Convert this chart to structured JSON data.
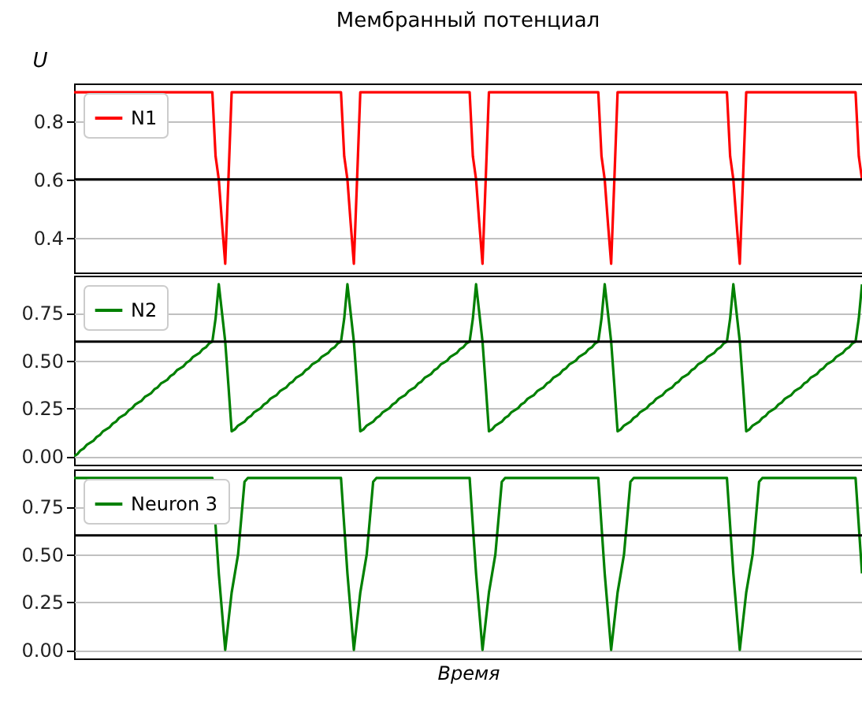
{
  "chart_data": [
    {
      "type": "line",
      "title": "Мембранный потенциал",
      "ylabel": "U",
      "categories": [
        null,
        null,
        null,
        null,
        null,
        null,
        null,
        null,
        null,
        null,
        null,
        null,
        null,
        null,
        null,
        null,
        null,
        null,
        null,
        null,
        null,
        null,
        null,
        null,
        null,
        null,
        null,
        null,
        null,
        null,
        null,
        null,
        null,
        null,
        null,
        null,
        null,
        null,
        null,
        null,
        null,
        null,
        null,
        null,
        null,
        null,
        null,
        null,
        null,
        null,
        null,
        null,
        null,
        null,
        null,
        null,
        null,
        null,
        null,
        null,
        null,
        null,
        null,
        null,
        null,
        null,
        null,
        null,
        null,
        null,
        null,
        null,
        null,
        null,
        null,
        null,
        null,
        null,
        null,
        null,
        null,
        null,
        null,
        null,
        null,
        null,
        null,
        null,
        null,
        null,
        null,
        null,
        null,
        null,
        null,
        null,
        null,
        null,
        null,
        null,
        null,
        null,
        null,
        null,
        null,
        null,
        null,
        null,
        null,
        null,
        null,
        null,
        null,
        null,
        null,
        null,
        null,
        null,
        null,
        null,
        null,
        null,
        null,
        null,
        null,
        null,
        null,
        null,
        null,
        null,
        null,
        null,
        null,
        null,
        null,
        null,
        null,
        null,
        null,
        null,
        null,
        null,
        null,
        null,
        null,
        null,
        null,
        null,
        null,
        null,
        null,
        null,
        null,
        null,
        null,
        null,
        null,
        null,
        null,
        null,
        null,
        null,
        null,
        null,
        null,
        null,
        null,
        null,
        null,
        null,
        null,
        null,
        null,
        null,
        null,
        null,
        null,
        null,
        null,
        null,
        null,
        null,
        null,
        null,
        null,
        null,
        null,
        null,
        null,
        null,
        null,
        null,
        null,
        null,
        null,
        null,
        null,
        null,
        null,
        null,
        null,
        null,
        null,
        null,
        null,
        null,
        null,
        null,
        null,
        null,
        null,
        null,
        null,
        null,
        null,
        null,
        null,
        null,
        null,
        null,
        null,
        null,
        null,
        null,
        null,
        null,
        null,
        null,
        null,
        null,
        null,
        null,
        null,
        null,
        null,
        null,
        null,
        null,
        null,
        null,
        null,
        null,
        null,
        null,
        null,
        null
      ],
      "series": [
        {
          "name": "N1",
          "color": "#ff0000",
          "values": [
            0.9,
            0.9,
            0.9,
            0.9,
            0.9,
            0.9,
            0.9,
            0.9,
            0.9,
            0.9,
            0.9,
            0.9,
            0.9,
            0.9,
            0.9,
            0.9,
            0.9,
            0.9,
            0.9,
            0.9,
            0.9,
            0.9,
            0.9,
            0.9,
            0.9,
            0.9,
            0.9,
            0.9,
            0.9,
            0.9,
            0.9,
            0.9,
            0.9,
            0.9,
            0.9,
            0.9,
            0.9,
            0.9,
            0.9,
            0.9,
            0.9,
            0.9,
            0.9,
            0.9,
            0.68,
            0.6,
            0.45,
            0.31,
            0.6,
            0.9,
            0.9,
            0.9,
            0.9,
            0.9,
            0.9,
            0.9,
            0.9,
            0.9,
            0.9,
            0.9,
            0.9,
            0.9,
            0.9,
            0.9,
            0.9,
            0.9,
            0.9,
            0.9,
            0.9,
            0.9,
            0.9,
            0.9,
            0.9,
            0.9,
            0.9,
            0.9,
            0.9,
            0.9,
            0.9,
            0.9,
            0.9,
            0.9,
            0.9,
            0.9,
            0.68,
            0.6,
            0.45,
            0.31,
            0.6,
            0.9,
            0.9,
            0.9,
            0.9,
            0.9,
            0.9,
            0.9,
            0.9,
            0.9,
            0.9,
            0.9,
            0.9,
            0.9,
            0.9,
            0.9,
            0.9,
            0.9,
            0.9,
            0.9,
            0.9,
            0.9,
            0.9,
            0.9,
            0.9,
            0.9,
            0.9,
            0.9,
            0.9,
            0.9,
            0.9,
            0.9,
            0.9,
            0.9,
            0.9,
            0.9,
            0.68,
            0.6,
            0.45,
            0.31,
            0.6,
            0.9,
            0.9,
            0.9,
            0.9,
            0.9,
            0.9,
            0.9,
            0.9,
            0.9,
            0.9,
            0.9,
            0.9,
            0.9,
            0.9,
            0.9,
            0.9,
            0.9,
            0.9,
            0.9,
            0.9,
            0.9,
            0.9,
            0.9,
            0.9,
            0.9,
            0.9,
            0.9,
            0.9,
            0.9,
            0.9,
            0.9,
            0.9,
            0.9,
            0.9,
            0.9,
            0.68,
            0.6,
            0.45,
            0.31,
            0.6,
            0.9,
            0.9,
            0.9,
            0.9,
            0.9,
            0.9,
            0.9,
            0.9,
            0.9,
            0.9,
            0.9,
            0.9,
            0.9,
            0.9,
            0.9,
            0.9,
            0.9,
            0.9,
            0.9,
            0.9,
            0.9,
            0.9,
            0.9,
            0.9,
            0.9,
            0.9,
            0.9,
            0.9,
            0.9,
            0.9,
            0.9,
            0.9,
            0.9,
            0.9,
            0.9,
            0.68,
            0.6,
            0.45,
            0.31,
            0.6,
            0.9,
            0.9,
            0.9,
            0.9,
            0.9,
            0.9,
            0.9,
            0.9,
            0.9,
            0.9,
            0.9,
            0.9,
            0.9,
            0.9,
            0.9,
            0.9,
            0.9,
            0.9,
            0.9,
            0.9,
            0.9,
            0.9,
            0.9,
            0.9,
            0.9,
            0.9,
            0.9,
            0.9,
            0.9,
            0.9,
            0.9,
            0.9,
            0.9,
            0.9,
            0.9,
            0.68,
            0.6
          ]
        }
      ],
      "ylim": [
        0.28,
        0.93
      ],
      "yticks": [
        0.4,
        0.6,
        0.8
      ],
      "ref_lines": [
        {
          "axis": "y",
          "value": 0.6,
          "color": "#000000"
        }
      ],
      "grid": "y",
      "legend": "top left",
      "tick_labels": "y"
    },
    {
      "type": "line",
      "categories": [
        null,
        null,
        null,
        null,
        null,
        null,
        null,
        null,
        null,
        null,
        null,
        null,
        null,
        null,
        null,
        null,
        null,
        null,
        null,
        null,
        null,
        null,
        null,
        null,
        null,
        null,
        null,
        null,
        null,
        null,
        null,
        null,
        null,
        null,
        null,
        null,
        null,
        null,
        null,
        null,
        null,
        null,
        null,
        null,
        null,
        null,
        null,
        null,
        null,
        null,
        null,
        null,
        null,
        null,
        null,
        null,
        null,
        null,
        null,
        null,
        null,
        null,
        null,
        null,
        null,
        null,
        null,
        null,
        null,
        null,
        null,
        null,
        null,
        null,
        null,
        null,
        null,
        null,
        null,
        null,
        null,
        null,
        null,
        null,
        null,
        null,
        null,
        null,
        null,
        null,
        null,
        null,
        null,
        null,
        null,
        null,
        null,
        null,
        null,
        null,
        null,
        null,
        null,
        null,
        null,
        null,
        null,
        null,
        null,
        null,
        null,
        null,
        null,
        null,
        null,
        null,
        null,
        null,
        null,
        null,
        null,
        null,
        null,
        null,
        null,
        null,
        null,
        null,
        null,
        null,
        null,
        null,
        null,
        null,
        null,
        null,
        null,
        null,
        null,
        null,
        null,
        null,
        null,
        null,
        null,
        null,
        null,
        null,
        null,
        null,
        null,
        null,
        null,
        null,
        null,
        null,
        null,
        null,
        null,
        null,
        null,
        null,
        null,
        null,
        null,
        null,
        null,
        null,
        null,
        null,
        null,
        null,
        null,
        null,
        null,
        null,
        null,
        null,
        null,
        null,
        null,
        null,
        null,
        null,
        null,
        null,
        null,
        null,
        null,
        null,
        null,
        null,
        null,
        null,
        null,
        null,
        null,
        null,
        null,
        null,
        null,
        null,
        null,
        null,
        null,
        null,
        null,
        null,
        null,
        null,
        null,
        null,
        null,
        null,
        null,
        null,
        null,
        null,
        null,
        null,
        null,
        null,
        null,
        null,
        null,
        null,
        null,
        null,
        null,
        null,
        null,
        null,
        null,
        null,
        null,
        null,
        null,
        null,
        null,
        null,
        null,
        null,
        null,
        null,
        null,
        null
      ],
      "series": [
        {
          "name": "N2",
          "color": "#008000",
          "values": [
            0,
            0.01,
            0.03,
            0.04,
            0.06,
            0.07,
            0.08,
            0.1,
            0.11,
            0.13,
            0.14,
            0.15,
            0.17,
            0.18,
            0.2,
            0.21,
            0.22,
            0.24,
            0.25,
            0.27,
            0.28,
            0.29,
            0.31,
            0.32,
            0.33,
            0.35,
            0.36,
            0.38,
            0.39,
            0.4,
            0.42,
            0.43,
            0.45,
            0.46,
            0.47,
            0.49,
            0.5,
            0.52,
            0.53,
            0.54,
            0.56,
            0.57,
            0.59,
            0.6,
            0.72,
            0.9,
            0.75,
            0.6,
            0.37,
            0.13,
            0.14,
            0.16,
            0.17,
            0.18,
            0.2,
            0.21,
            0.23,
            0.24,
            0.25,
            0.27,
            0.28,
            0.3,
            0.31,
            0.32,
            0.34,
            0.35,
            0.36,
            0.38,
            0.39,
            0.41,
            0.42,
            0.43,
            0.45,
            0.46,
            0.48,
            0.49,
            0.5,
            0.52,
            0.53,
            0.54,
            0.56,
            0.57,
            0.59,
            0.6,
            0.72,
            0.9,
            0.75,
            0.6,
            0.37,
            0.13,
            0.14,
            0.16,
            0.17,
            0.18,
            0.2,
            0.21,
            0.23,
            0.24,
            0.25,
            0.27,
            0.28,
            0.3,
            0.31,
            0.32,
            0.34,
            0.35,
            0.36,
            0.38,
            0.39,
            0.41,
            0.42,
            0.43,
            0.45,
            0.46,
            0.48,
            0.49,
            0.5,
            0.52,
            0.53,
            0.54,
            0.56,
            0.57,
            0.59,
            0.6,
            0.72,
            0.9,
            0.75,
            0.6,
            0.37,
            0.13,
            0.14,
            0.16,
            0.17,
            0.18,
            0.2,
            0.21,
            0.23,
            0.24,
            0.25,
            0.27,
            0.28,
            0.3,
            0.31,
            0.32,
            0.34,
            0.35,
            0.36,
            0.38,
            0.39,
            0.41,
            0.42,
            0.43,
            0.45,
            0.46,
            0.48,
            0.49,
            0.5,
            0.52,
            0.53,
            0.54,
            0.56,
            0.57,
            0.59,
            0.6,
            0.72,
            0.9,
            0.75,
            0.6,
            0.37,
            0.13,
            0.14,
            0.16,
            0.17,
            0.18,
            0.2,
            0.21,
            0.23,
            0.24,
            0.25,
            0.27,
            0.28,
            0.3,
            0.31,
            0.32,
            0.34,
            0.35,
            0.36,
            0.38,
            0.39,
            0.41,
            0.42,
            0.43,
            0.45,
            0.46,
            0.48,
            0.49,
            0.5,
            0.52,
            0.53,
            0.54,
            0.56,
            0.57,
            0.59,
            0.6,
            0.72,
            0.9,
            0.75,
            0.6,
            0.37,
            0.13,
            0.14,
            0.16,
            0.17,
            0.18,
            0.2,
            0.21,
            0.23,
            0.24,
            0.25,
            0.27,
            0.28,
            0.3,
            0.31,
            0.32,
            0.34,
            0.35,
            0.36,
            0.38,
            0.39,
            0.41,
            0.42,
            0.43,
            0.45,
            0.46,
            0.48,
            0.49,
            0.5,
            0.52,
            0.53,
            0.54,
            0.56,
            0.57,
            0.59,
            0.6,
            0.72,
            0.9
          ]
        }
      ],
      "ylim": [
        -0.045,
        0.945
      ],
      "yticks": [
        {
          "value": 0,
          "label": "0.00"
        },
        {
          "value": 0.25,
          "label": "0.25"
        },
        {
          "value": 0.5,
          "label": "0.50"
        },
        {
          "value": 0.75,
          "label": "0.75"
        }
      ],
      "ref_lines": [
        {
          "axis": "y",
          "value": 0.6,
          "color": "#000000"
        }
      ],
      "grid": "y",
      "legend": "top left",
      "tick_labels": "y"
    },
    {
      "type": "line",
      "xlabel": "Время",
      "categories": [
        null,
        null,
        null,
        null,
        null,
        null,
        null,
        null,
        null,
        null,
        null,
        null,
        null,
        null,
        null,
        null,
        null,
        null,
        null,
        null,
        null,
        null,
        null,
        null,
        null,
        null,
        null,
        null,
        null,
        null,
        null,
        null,
        null,
        null,
        null,
        null,
        null,
        null,
        null,
        null,
        null,
        null,
        null,
        null,
        null,
        null,
        null,
        null,
        null,
        null,
        null,
        null,
        null,
        null,
        null,
        null,
        null,
        null,
        null,
        null,
        null,
        null,
        null,
        null,
        null,
        null,
        null,
        null,
        null,
        null,
        null,
        null,
        null,
        null,
        null,
        null,
        null,
        null,
        null,
        null,
        null,
        null,
        null,
        null,
        null,
        null,
        null,
        null,
        null,
        null,
        null,
        null,
        null,
        null,
        null,
        null,
        null,
        null,
        null,
        null,
        null,
        null,
        null,
        null,
        null,
        null,
        null,
        null,
        null,
        null,
        null,
        null,
        null,
        null,
        null,
        null,
        null,
        null,
        null,
        null,
        null,
        null,
        null,
        null,
        null,
        null,
        null,
        null,
        null,
        null,
        null,
        null,
        null,
        null,
        null,
        null,
        null,
        null,
        null,
        null,
        null,
        null,
        null,
        null,
        null,
        null,
        null,
        null,
        null,
        null,
        null,
        null,
        null,
        null,
        null,
        null,
        null,
        null,
        null,
        null,
        null,
        null,
        null,
        null,
        null,
        null,
        null,
        null,
        null,
        null,
        null,
        null,
        null,
        null,
        null,
        null,
        null,
        null,
        null,
        null,
        null,
        null,
        null,
        null,
        null,
        null,
        null,
        null,
        null,
        null,
        null,
        null,
        null,
        null,
        null,
        null,
        null,
        null,
        null,
        null,
        null,
        null,
        null,
        null,
        null,
        null,
        null,
        null,
        null,
        null,
        null,
        null,
        null,
        null,
        null,
        null,
        null,
        null,
        null,
        null,
        null,
        null,
        null,
        null,
        null,
        null,
        null,
        null,
        null,
        null,
        null,
        null,
        null,
        null,
        null,
        null,
        null,
        null,
        null,
        null,
        null,
        null,
        null,
        null,
        null,
        null
      ],
      "series": [
        {
          "name": "Neuron 3",
          "color": "#008000",
          "values": [
            0.9,
            0.9,
            0.9,
            0.9,
            0.9,
            0.9,
            0.9,
            0.9,
            0.9,
            0.9,
            0.9,
            0.9,
            0.9,
            0.9,
            0.9,
            0.9,
            0.9,
            0.9,
            0.9,
            0.9,
            0.9,
            0.9,
            0.9,
            0.9,
            0.9,
            0.9,
            0.9,
            0.9,
            0.9,
            0.9,
            0.9,
            0.9,
            0.9,
            0.9,
            0.9,
            0.9,
            0.9,
            0.9,
            0.9,
            0.9,
            0.9,
            0.9,
            0.9,
            0.9,
            0.65,
            0.4,
            0.2,
            0,
            0.15,
            0.3,
            0.4,
            0.5,
            0.69,
            0.88,
            0.9,
            0.9,
            0.9,
            0.9,
            0.9,
            0.9,
            0.9,
            0.9,
            0.9,
            0.9,
            0.9,
            0.9,
            0.9,
            0.9,
            0.9,
            0.9,
            0.9,
            0.9,
            0.9,
            0.9,
            0.9,
            0.9,
            0.9,
            0.9,
            0.9,
            0.9,
            0.9,
            0.9,
            0.9,
            0.9,
            0.65,
            0.4,
            0.2,
            0,
            0.15,
            0.3,
            0.4,
            0.5,
            0.69,
            0.88,
            0.9,
            0.9,
            0.9,
            0.9,
            0.9,
            0.9,
            0.9,
            0.9,
            0.9,
            0.9,
            0.9,
            0.9,
            0.9,
            0.9,
            0.9,
            0.9,
            0.9,
            0.9,
            0.9,
            0.9,
            0.9,
            0.9,
            0.9,
            0.9,
            0.9,
            0.9,
            0.9,
            0.9,
            0.9,
            0.9,
            0.65,
            0.4,
            0.2,
            0,
            0.15,
            0.3,
            0.4,
            0.5,
            0.69,
            0.88,
            0.9,
            0.9,
            0.9,
            0.9,
            0.9,
            0.9,
            0.9,
            0.9,
            0.9,
            0.9,
            0.9,
            0.9,
            0.9,
            0.9,
            0.9,
            0.9,
            0.9,
            0.9,
            0.9,
            0.9,
            0.9,
            0.9,
            0.9,
            0.9,
            0.9,
            0.9,
            0.9,
            0.9,
            0.9,
            0.9,
            0.65,
            0.4,
            0.2,
            0,
            0.15,
            0.3,
            0.4,
            0.5,
            0.69,
            0.88,
            0.9,
            0.9,
            0.9,
            0.9,
            0.9,
            0.9,
            0.9,
            0.9,
            0.9,
            0.9,
            0.9,
            0.9,
            0.9,
            0.9,
            0.9,
            0.9,
            0.9,
            0.9,
            0.9,
            0.9,
            0.9,
            0.9,
            0.9,
            0.9,
            0.9,
            0.9,
            0.9,
            0.9,
            0.9,
            0.9,
            0.65,
            0.4,
            0.2,
            0,
            0.15,
            0.3,
            0.4,
            0.5,
            0.69,
            0.88,
            0.9,
            0.9,
            0.9,
            0.9,
            0.9,
            0.9,
            0.9,
            0.9,
            0.9,
            0.9,
            0.9,
            0.9,
            0.9,
            0.9,
            0.9,
            0.9,
            0.9,
            0.9,
            0.9,
            0.9,
            0.9,
            0.9,
            0.9,
            0.9,
            0.9,
            0.9,
            0.9,
            0.9,
            0.9,
            0.9,
            0.65,
            0.4
          ]
        }
      ],
      "ylim": [
        -0.045,
        0.945
      ],
      "yticks": [
        {
          "value": 0,
          "label": "0.00"
        },
        {
          "value": 0.25,
          "label": "0.25"
        },
        {
          "value": 0.5,
          "label": "0.50"
        },
        {
          "value": 0.75,
          "label": "0.75"
        }
      ],
      "ref_lines": [
        {
          "axis": "y",
          "value": 0.6,
          "color": "#000000"
        }
      ],
      "grid": "y",
      "legend": "top left",
      "tick_labels": "y"
    }
  ]
}
